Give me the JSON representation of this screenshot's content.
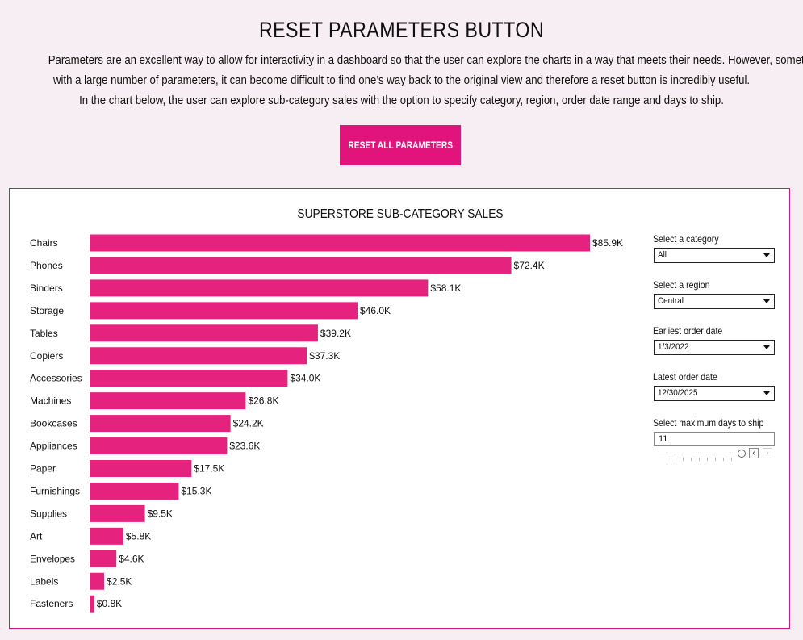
{
  "header": {
    "title": "RESET PARAMETERS BUTTON",
    "description_lines": [
      "Parameters are an excellent way to allow for interactivity in a dashboard so that the user can explore the charts in a way that meets their needs. However, sometimes",
      "with a large number of parameters, it can become difficult to find one’s way back to the original view and therefore a reset button is incredibly useful.",
      "In the chart below, the user can explore sub-category sales with the option to specify category, region, order date range and days to ship."
    ],
    "reset_button_label": "RESET ALL PARAMETERS"
  },
  "colors": {
    "accent": "#e0147a",
    "bar": "#e5237f",
    "background": "#f6eef2"
  },
  "controls": {
    "category": {
      "label": "Select a category",
      "value": "All"
    },
    "region": {
      "label": "Select a region",
      "value": "Central"
    },
    "earliest_date": {
      "label": "Earliest order date",
      "value": "1/3/2022"
    },
    "latest_date": {
      "label": "Latest order date",
      "value": "12/30/2025"
    },
    "max_days": {
      "label": "Select maximum days to ship",
      "value": "11",
      "prev_icon": "chevron-left-icon",
      "next_icon": "chevron-right-icon"
    }
  },
  "chart_data": {
    "type": "bar",
    "orientation": "horizontal",
    "title": "SUPERSTORE SUB-CATEGORY SALES",
    "categories": [
      "Chairs",
      "Phones",
      "Binders",
      "Storage",
      "Tables",
      "Copiers",
      "Accessories",
      "Machines",
      "Bookcases",
      "Appliances",
      "Paper",
      "Furnishings",
      "Supplies",
      "Art",
      "Envelopes",
      "Labels",
      "Fasteners"
    ],
    "values": [
      85.9,
      72.4,
      58.1,
      46.0,
      39.2,
      37.3,
      34.0,
      26.8,
      24.2,
      23.6,
      17.5,
      15.3,
      9.5,
      5.8,
      4.6,
      2.5,
      0.8
    ],
    "data_labels": [
      "$85.9K",
      "$72.4K",
      "$58.1K",
      "$46.0K",
      "$39.2K",
      "$37.3K",
      "$34.0K",
      "$26.8K",
      "$24.2K",
      "$23.6K",
      "$17.5K",
      "$15.3K",
      "$9.5K",
      "$5.8K",
      "$4.6K",
      "$2.5K",
      "$0.8K"
    ],
    "unit": "thousands of dollars",
    "xlim": [
      0,
      85.9
    ],
    "grid": false,
    "axes_visible": false
  }
}
